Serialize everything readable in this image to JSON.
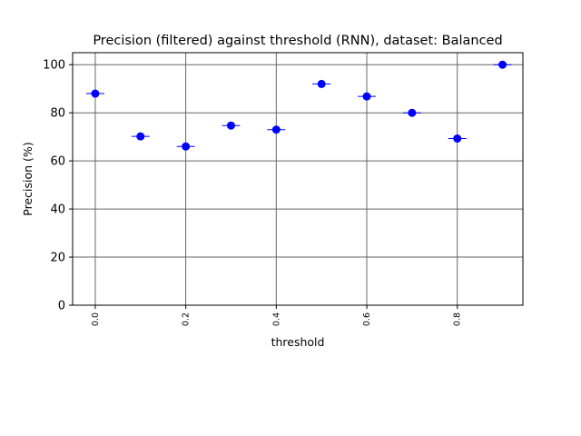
{
  "chart_data": {
    "type": "scatter",
    "title": "Precision (filtered) against threshold (RNN), dataset: Balanced",
    "xlabel": "threshold",
    "ylabel": "Precision (%)",
    "xlim": [
      -0.05,
      0.945
    ],
    "ylim": [
      0,
      105
    ],
    "x_ticks": [
      0.0,
      0.2,
      0.4,
      0.6,
      0.8
    ],
    "x_tick_labels": [
      "0.0",
      "0.2",
      "0.4",
      "0.6",
      "0.8"
    ],
    "y_ticks": [
      0,
      20,
      40,
      60,
      80,
      100
    ],
    "y_tick_labels": [
      "0",
      "20",
      "40",
      "60",
      "80",
      "100"
    ],
    "grid_lines_x": [
      0.0,
      0.2,
      0.4,
      0.6,
      0.8
    ],
    "grid_lines_y": [
      20,
      40,
      60,
      80,
      100
    ],
    "grid": true,
    "marker_color": "#0000ff",
    "grid_color": "#666666",
    "error_bar_halfwidth": 0.02,
    "points": {
      "x": [
        0.0,
        0.1,
        0.2,
        0.3,
        0.4,
        0.5,
        0.6,
        0.7,
        0.8,
        0.9
      ],
      "y": [
        88,
        70.2,
        66,
        74.7,
        73,
        92,
        86.8,
        80,
        69.3,
        100
      ]
    }
  }
}
